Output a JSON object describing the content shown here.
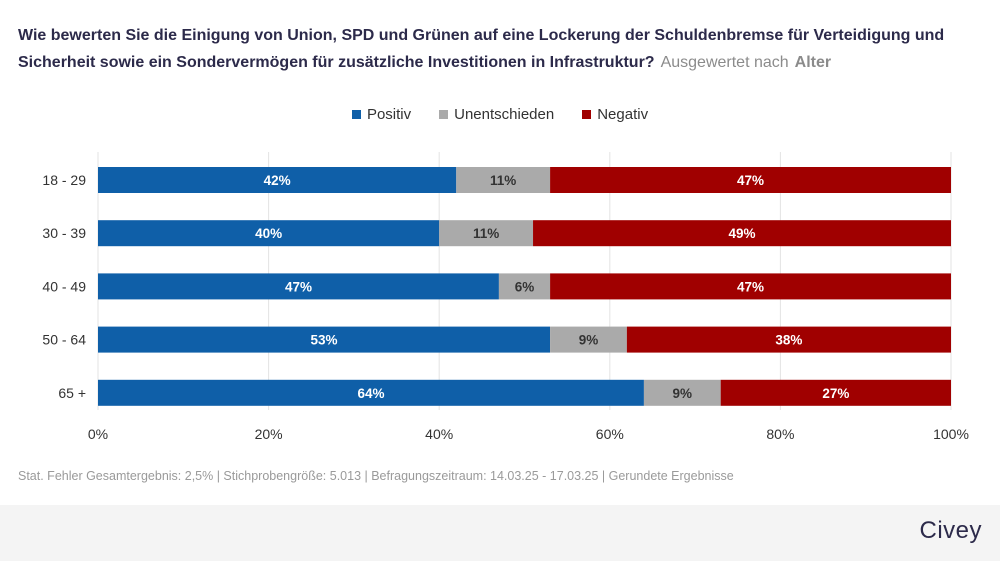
{
  "header": {
    "question": "Wie bewerten Sie die Einigung von Union, SPD und Grünen auf eine Lockerung der Schuldenbremse für Verteidigung und Sicherheit sowie ein Sondervermögen für zusätzliche Investitionen in Infrastruktur?",
    "grouping_label": "Ausgewertet nach",
    "grouping_value": "Alter"
  },
  "footer": {
    "note": "Stat. Fehler Gesamtergebnis: 2,5% | Stichprobengröße: 5.013 | Befragungszeitraum: 14.03.25 - 17.03.25 | Gerundete Ergebnisse",
    "brand": "Civey"
  },
  "chart_data": {
    "type": "bar",
    "orientation": "horizontal",
    "stacked": true,
    "categories": [
      "18 - 29",
      "30 - 39",
      "40 - 49",
      "50 - 64",
      "65 +"
    ],
    "series": [
      {
        "name": "Positiv",
        "color": "#0f5fa8",
        "values": [
          42,
          40,
          47,
          53,
          64
        ],
        "labels": [
          "42%",
          "40%",
          "47%",
          "53%",
          "64%"
        ]
      },
      {
        "name": "Unentschieden",
        "color": "#aaaaaa",
        "values": [
          11,
          11,
          6,
          9,
          9
        ],
        "labels": [
          "11%",
          "11%",
          "6%",
          "9%",
          "9%"
        ]
      },
      {
        "name": "Negativ",
        "color": "#a00000",
        "values": [
          47,
          49,
          47,
          38,
          27
        ],
        "labels": [
          "47%",
          "49%",
          "47%",
          "38%",
          "27%"
        ]
      }
    ],
    "xlim": [
      0,
      100
    ],
    "xticks": [
      "0%",
      "20%",
      "40%",
      "60%",
      "80%",
      "100%"
    ],
    "grid": true,
    "legend_position": "top-center"
  }
}
